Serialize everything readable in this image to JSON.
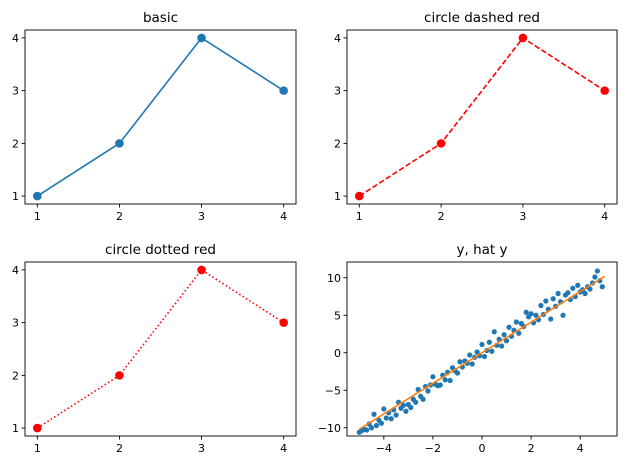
{
  "chart_data": [
    {
      "type": "line",
      "title": "basic",
      "x": [
        1,
        2,
        3,
        4
      ],
      "series": [
        {
          "values": [
            1,
            2,
            4,
            3
          ],
          "color": "#1f77b4",
          "linestyle": "solid",
          "marker": "circle"
        }
      ],
      "xlim": [
        0.85,
        4.15
      ],
      "ylim": [
        0.85,
        4.15
      ],
      "xticks": [
        1,
        2,
        3,
        4
      ],
      "yticks": [
        1,
        2,
        3,
        4
      ],
      "xlabel": "",
      "ylabel": "",
      "grid": false
    },
    {
      "type": "line",
      "title": "circle dashed red",
      "x": [
        1,
        2,
        3,
        4
      ],
      "series": [
        {
          "values": [
            1,
            2,
            4,
            3
          ],
          "color": "#ff0000",
          "linestyle": "dashed",
          "marker": "circle"
        }
      ],
      "xlim": [
        0.85,
        4.15
      ],
      "ylim": [
        0.85,
        4.15
      ],
      "xticks": [
        1,
        2,
        3,
        4
      ],
      "yticks": [
        1,
        2,
        3,
        4
      ],
      "xlabel": "",
      "ylabel": "",
      "grid": false
    },
    {
      "type": "line",
      "title": "circle dotted red",
      "x": [
        1,
        2,
        3,
        4
      ],
      "series": [
        {
          "values": [
            1,
            2,
            4,
            3
          ],
          "color": "#ff0000",
          "linestyle": "dotted",
          "marker": "circle"
        }
      ],
      "xlim": [
        0.85,
        4.15
      ],
      "ylim": [
        0.85,
        4.15
      ],
      "xticks": [
        1,
        2,
        3,
        4
      ],
      "yticks": [
        1,
        2,
        3,
        4
      ],
      "xlabel": "",
      "ylabel": "",
      "grid": false
    },
    {
      "type": "scatter",
      "title": "y, hat y",
      "xlim": [
        -5.5,
        5.5
      ],
      "ylim": [
        -11.1,
        12.1
      ],
      "xticks": [
        -4,
        -2,
        0,
        2,
        4
      ],
      "yticks": [
        -10,
        -5,
        0,
        5,
        10
      ],
      "xlabel": "",
      "ylabel": "",
      "grid": false,
      "series": [
        {
          "type": "scatter",
          "color": "#1f77b4",
          "points": [
            [
              -5.0,
              -10.6
            ],
            [
              -4.9,
              -10.4
            ],
            [
              -4.8,
              -10.2
            ],
            [
              -4.7,
              -10.3
            ],
            [
              -4.6,
              -9.5
            ],
            [
              -4.5,
              -10.0
            ],
            [
              -4.4,
              -8.2
            ],
            [
              -4.3,
              -9.7
            ],
            [
              -4.2,
              -9.0
            ],
            [
              -4.1,
              -9.4
            ],
            [
              -4.0,
              -7.5
            ],
            [
              -3.9,
              -8.7
            ],
            [
              -3.8,
              -8.0
            ],
            [
              -3.7,
              -8.8
            ],
            [
              -3.6,
              -7.6
            ],
            [
              -3.5,
              -8.3
            ],
            [
              -3.4,
              -6.6
            ],
            [
              -3.3,
              -7.4
            ],
            [
              -3.2,
              -7.0
            ],
            [
              -3.1,
              -7.8
            ],
            [
              -3.0,
              -6.9
            ],
            [
              -2.9,
              -7.3
            ],
            [
              -2.8,
              -6.2
            ],
            [
              -2.7,
              -6.6
            ],
            [
              -2.6,
              -4.9
            ],
            [
              -2.5,
              -5.8
            ],
            [
              -2.4,
              -6.2
            ],
            [
              -2.3,
              -4.5
            ],
            [
              -2.2,
              -5.1
            ],
            [
              -2.1,
              -4.3
            ],
            [
              -2.0,
              -3.2
            ],
            [
              -1.9,
              -4.2
            ],
            [
              -1.8,
              -4.4
            ],
            [
              -1.7,
              -4.3
            ],
            [
              -1.6,
              -3.0
            ],
            [
              -1.5,
              -3.6
            ],
            [
              -1.4,
              -2.6
            ],
            [
              -1.3,
              -3.7
            ],
            [
              -1.2,
              -2.0
            ],
            [
              -1.1,
              -2.4
            ],
            [
              -1.0,
              -2.7
            ],
            [
              -0.9,
              -1.2
            ],
            [
              -0.8,
              -1.9
            ],
            [
              -0.7,
              -1.1
            ],
            [
              -0.6,
              -1.4
            ],
            [
              -0.5,
              -0.3
            ],
            [
              -0.4,
              -1.5
            ],
            [
              -0.3,
              -0.6
            ],
            [
              -0.2,
              0.1
            ],
            [
              -0.1,
              -0.4
            ],
            [
              0.0,
              1.1
            ],
            [
              0.1,
              -0.5
            ],
            [
              0.2,
              0.3
            ],
            [
              0.3,
              1.4
            ],
            [
              0.4,
              0.2
            ],
            [
              0.5,
              2.8
            ],
            [
              0.6,
              1.0
            ],
            [
              0.7,
              1.8
            ],
            [
              0.8,
              0.9
            ],
            [
              0.9,
              2.4
            ],
            [
              1.0,
              1.6
            ],
            [
              1.1,
              3.4
            ],
            [
              1.2,
              2.2
            ],
            [
              1.3,
              3.0
            ],
            [
              1.4,
              4.1
            ],
            [
              1.5,
              2.6
            ],
            [
              1.6,
              3.9
            ],
            [
              1.7,
              3.5
            ],
            [
              1.8,
              5.4
            ],
            [
              1.9,
              4.8
            ],
            [
              2.0,
              5.2
            ],
            [
              2.1,
              4.0
            ],
            [
              2.2,
              5.0
            ],
            [
              2.3,
              4.4
            ],
            [
              2.4,
              6.3
            ],
            [
              2.5,
              5.1
            ],
            [
              2.6,
              6.9
            ],
            [
              2.7,
              5.8
            ],
            [
              2.8,
              4.5
            ],
            [
              2.9,
              7.2
            ],
            [
              3.0,
              6.2
            ],
            [
              3.1,
              7.9
            ],
            [
              3.2,
              6.8
            ],
            [
              3.3,
              5.0
            ],
            [
              3.4,
              7.7
            ],
            [
              3.5,
              8.0
            ],
            [
              3.6,
              7.1
            ],
            [
              3.7,
              8.6
            ],
            [
              3.8,
              7.5
            ],
            [
              3.9,
              9.0
            ],
            [
              4.0,
              8.1
            ],
            [
              4.1,
              8.4
            ],
            [
              4.2,
              7.9
            ],
            [
              4.3,
              8.8
            ],
            [
              4.4,
              8.5
            ],
            [
              4.5,
              9.3
            ],
            [
              4.6,
              10.1
            ],
            [
              4.7,
              10.9
            ],
            [
              4.8,
              9.6
            ],
            [
              4.9,
              8.8
            ]
          ]
        },
        {
          "type": "line",
          "color": "#ff7f0e",
          "linestyle": "solid",
          "x": [
            -5.0,
            5.0
          ],
          "values": [
            -10.2,
            10.2
          ]
        }
      ]
    }
  ]
}
